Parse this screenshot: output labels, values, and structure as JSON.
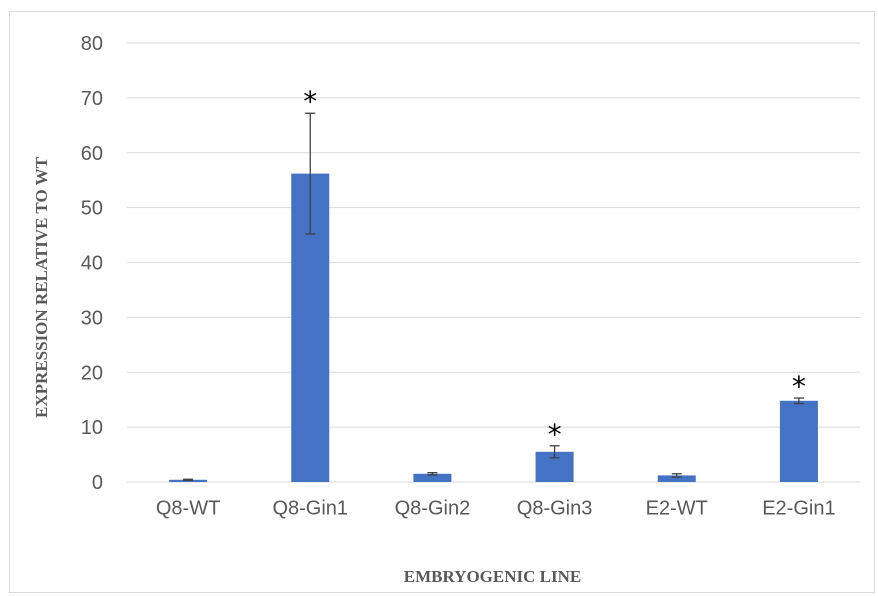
{
  "chart_data": {
    "type": "bar",
    "title": "",
    "xlabel": "EMBRYOGENIC LINE",
    "ylabel": "EXPRESSION RELATIVE TO WT",
    "ylim": [
      0,
      80
    ],
    "yticks": [
      "0",
      "10",
      "20",
      "30",
      "40",
      "50",
      "60",
      "70",
      "80"
    ],
    "categories": [
      "Q8-WT",
      "Q8-Gin1",
      "Q8-Gin2",
      "Q8-Gin3",
      "E2-WT",
      "E2-Gin1"
    ],
    "values": [
      0.4,
      56.2,
      1.5,
      5.5,
      1.2,
      14.8
    ],
    "errors": [
      0.1,
      11.0,
      0.2,
      1.1,
      0.3,
      0.5
    ],
    "significant": [
      false,
      true,
      false,
      true,
      false,
      true
    ],
    "significance_marker": "*",
    "grid": true,
    "legend": "none",
    "colors": {
      "bar": "#4472c4",
      "grid": "#d9d9d9",
      "error_bar": "#404040"
    }
  }
}
